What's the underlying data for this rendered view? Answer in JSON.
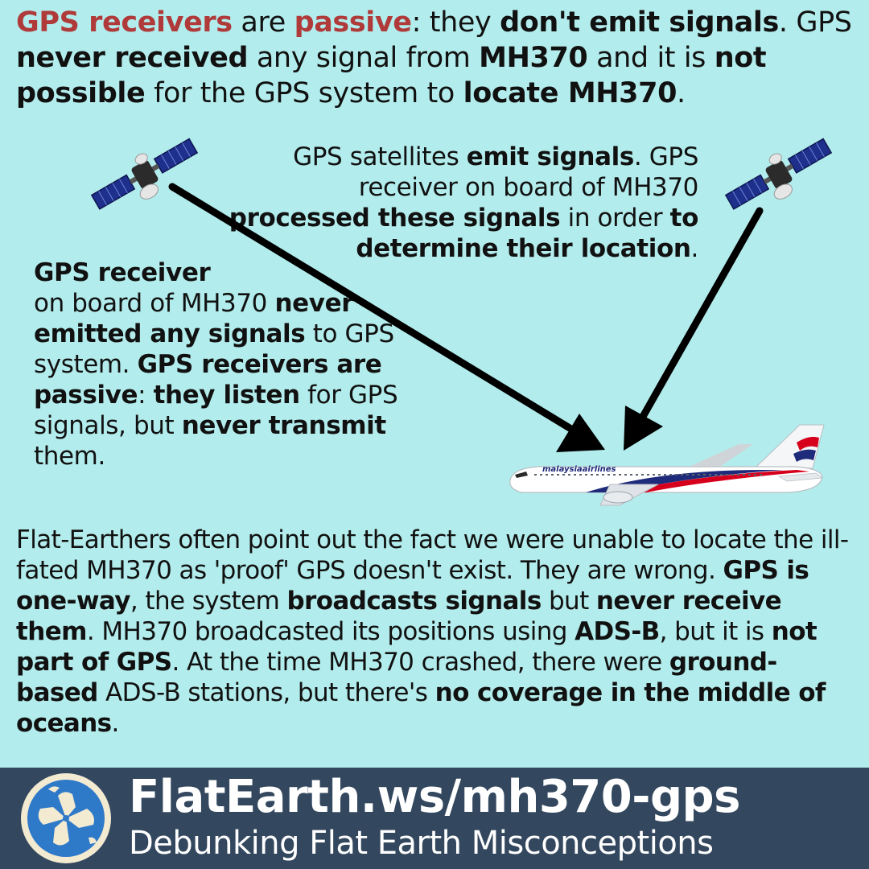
{
  "headline": {
    "p1": "GPS receivers",
    "p2": " are ",
    "p3": "passive",
    "p4": ": they ",
    "p5": "don't emit signals",
    "p6": ". GPS ",
    "p7": "never received",
    "p8": " any signal from ",
    "p9": "MH370",
    "p10": " and it is ",
    "p11": "not possible",
    "p12": " for the GPS system to ",
    "p13": "locate MH370",
    "p14": "."
  },
  "satellite_caption": {
    "p1": "GPS satellites ",
    "p2": "emit signals",
    "p3": ". GPS receiver on board of MH370 ",
    "p4": "processed these signals",
    "p5": " in order ",
    "p6": "to determine their location",
    "p7": "."
  },
  "receiver_caption": {
    "p1": "GPS receiver",
    "p2": " on board of MH370 ",
    "p3": "never emitted any signals",
    "p4": " to GPS system. ",
    "p5": "GPS receivers are passive",
    "p6": ": ",
    "p7": "they listen",
    "p8": " for GPS signals, but ",
    "p9": "never transmit",
    "p10": " them."
  },
  "explanation": {
    "p1": "Flat-Earthers often point out the fact we were unable to locate the ill-fated MH370 as 'proof' GPS doesn't exist. They are wrong. ",
    "p2": "GPS is one-way",
    "p3": ", the system ",
    "p4": "broadcasts signals",
    "p5": " but ",
    "p6": "never receive them",
    "p7": ". MH370 broadcasted its positions using ",
    "p8": "ADS-B",
    "p9": ", but it is ",
    "p10": "not part of GPS",
    "p11": ". At the time MH370 crashed, there were ",
    "p12": "ground-based",
    "p13": " ADS-B stations, but there's ",
    "p14": "no coverage in the middle of oceans",
    "p15": "."
  },
  "airplane": {
    "livery_text": "malaysiaairlines"
  },
  "footer": {
    "url": "FlatEarth.ws/mh370-gps",
    "tagline": "Debunking Flat Earth Misconceptions"
  },
  "colors": {
    "background": "#b3ecec",
    "emphasis_red": "#b03a3a",
    "footer_bar": "#33475e"
  },
  "icons": [
    "satellite-icon",
    "airplane-icon",
    "flat-earth-logo-icon",
    "arrow-icon"
  ]
}
